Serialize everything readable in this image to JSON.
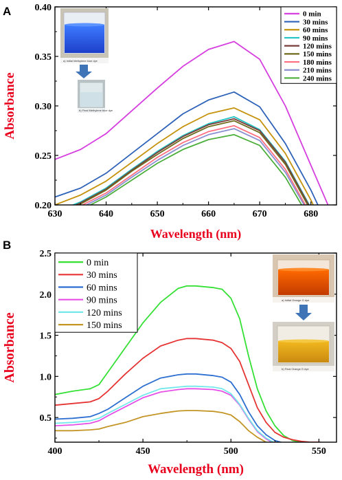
{
  "panels": {
    "a": {
      "letter": "A"
    },
    "b": {
      "letter": "B"
    }
  },
  "insets": {
    "a_top_caption": "a) Initial Methylene blue dye",
    "a_bottom_caption": "b) Final Methylene blue dye",
    "b_top_caption": "a) Initial Orange G dye",
    "b_bottom_caption": "b) Final Orange G dye"
  },
  "colors": {
    "axis_title": "#e8001c",
    "arrow": "#3f74b7"
  },
  "chart_data": [
    {
      "type": "line",
      "panel": "A",
      "xlabel": "Wavelength (nm)",
      "ylabel": "Absorbance",
      "xlim": [
        630,
        685
      ],
      "ylim": [
        0.2,
        0.4
      ],
      "xticks": [
        "630",
        "640",
        "650",
        "660",
        "670",
        "680"
      ],
      "yticks": [
        "0.20",
        "0.25",
        "0.30",
        "0.35",
        "0.40"
      ],
      "legend_position": "top-right",
      "x": [
        630,
        635,
        640,
        645,
        650,
        655,
        660,
        665,
        670,
        675,
        680,
        685
      ],
      "series": [
        {
          "name": "0 min",
          "color": "#d63ee0",
          "values": [
            0.246,
            0.256,
            0.272,
            0.295,
            0.318,
            0.34,
            0.357,
            0.365,
            0.347,
            0.3,
            0.24,
            0.18
          ]
        },
        {
          "name": "30 mins",
          "color": "#2e62b8",
          "values": [
            0.208,
            0.217,
            0.232,
            0.252,
            0.272,
            0.292,
            0.306,
            0.314,
            0.299,
            0.262,
            0.215,
            0.16
          ]
        },
        {
          "name": "60 mins",
          "color": "#c5920b",
          "values": [
            0.2,
            0.21,
            0.224,
            0.243,
            0.262,
            0.279,
            0.292,
            0.298,
            0.286,
            0.252,
            0.205,
            0.15
          ]
        },
        {
          "name": "90 mins",
          "color": "#20c4c4",
          "values": [
            0.193,
            0.203,
            0.217,
            0.236,
            0.254,
            0.27,
            0.282,
            0.289,
            0.276,
            0.244,
            0.197,
            0.14
          ]
        },
        {
          "name": "120 mins",
          "color": "#7a3b3b",
          "values": [
            0.191,
            0.202,
            0.216,
            0.235,
            0.253,
            0.269,
            0.281,
            0.287,
            0.275,
            0.243,
            0.196,
            0.14
          ]
        },
        {
          "name": "150 mins",
          "color": "#6f6a1c",
          "values": [
            0.19,
            0.201,
            0.215,
            0.234,
            0.251,
            0.267,
            0.279,
            0.285,
            0.273,
            0.241,
            0.194,
            0.14
          ]
        },
        {
          "name": "180 mins",
          "color": "#ff6f7f",
          "values": [
            0.188,
            0.199,
            0.212,
            0.23,
            0.248,
            0.263,
            0.274,
            0.28,
            0.268,
            0.236,
            0.19,
            0.14
          ]
        },
        {
          "name": "210 mins",
          "color": "#8a8fd1",
          "values": [
            0.186,
            0.197,
            0.21,
            0.228,
            0.245,
            0.26,
            0.271,
            0.277,
            0.265,
            0.233,
            0.188,
            0.14
          ]
        },
        {
          "name": "240 mins",
          "color": "#4cae3b",
          "values": [
            0.184,
            0.195,
            0.208,
            0.225,
            0.242,
            0.256,
            0.266,
            0.271,
            0.26,
            0.228,
            0.184,
            0.13
          ]
        }
      ]
    },
    {
      "type": "line",
      "panel": "B",
      "xlabel": "Wavelength (nm)",
      "ylabel": "Absorbance",
      "xlim": [
        400,
        560
      ],
      "ylim": [
        0.2,
        2.5
      ],
      "xticks": [
        "400",
        "450",
        "500",
        "550"
      ],
      "yticks": [
        "0.5",
        "1.0",
        "1.5",
        "2.0",
        "2.5"
      ],
      "legend_position": "top-left",
      "x": [
        400,
        410,
        420,
        425,
        430,
        440,
        450,
        460,
        470,
        475,
        480,
        490,
        495,
        500,
        505,
        510,
        515,
        520,
        525,
        530,
        535,
        540,
        545,
        550,
        555,
        560
      ],
      "series": [
        {
          "name": "0 min",
          "color": "#33e033",
          "values": [
            0.78,
            0.82,
            0.85,
            0.9,
            1.05,
            1.35,
            1.65,
            1.9,
            2.07,
            2.1,
            2.1,
            2.08,
            2.06,
            1.95,
            1.7,
            1.25,
            0.85,
            0.58,
            0.4,
            0.28,
            0.22,
            0.2,
            0.19,
            0.18,
            0.17,
            0.17
          ]
        },
        {
          "name": "30 mins",
          "color": "#e63333",
          "values": [
            0.65,
            0.67,
            0.69,
            0.73,
            0.82,
            1.03,
            1.22,
            1.37,
            1.44,
            1.46,
            1.46,
            1.44,
            1.41,
            1.34,
            1.18,
            0.9,
            0.62,
            0.44,
            0.32,
            0.26,
            0.23,
            0.21,
            0.2,
            0.2,
            0.19,
            0.19
          ]
        },
        {
          "name": "60 mins",
          "color": "#2c6fd1",
          "values": [
            0.48,
            0.49,
            0.51,
            0.55,
            0.6,
            0.74,
            0.88,
            0.98,
            1.02,
            1.03,
            1.03,
            1.01,
            0.99,
            0.93,
            0.78,
            0.57,
            0.4,
            0.29,
            0.22,
            0.19,
            0.17,
            0.16,
            0.15,
            0.15,
            0.15,
            0.15
          ]
        },
        {
          "name": "90 mins",
          "color": "#e64fe6",
          "values": [
            0.4,
            0.41,
            0.43,
            0.46,
            0.52,
            0.63,
            0.74,
            0.81,
            0.84,
            0.85,
            0.85,
            0.84,
            0.82,
            0.77,
            0.65,
            0.48,
            0.33,
            0.24,
            0.18,
            0.16,
            0.15,
            0.15,
            0.15,
            0.15,
            0.15,
            0.15
          ]
        },
        {
          "name": "120 mins",
          "color": "#72e8ea",
          "values": [
            0.43,
            0.44,
            0.46,
            0.49,
            0.55,
            0.66,
            0.77,
            0.85,
            0.87,
            0.88,
            0.88,
            0.87,
            0.85,
            0.79,
            0.66,
            0.49,
            0.34,
            0.25,
            0.19,
            0.17,
            0.16,
            0.16,
            0.16,
            0.16,
            0.16,
            0.16
          ]
        },
        {
          "name": "150 mins",
          "color": "#c39524",
          "values": [
            0.34,
            0.34,
            0.35,
            0.36,
            0.39,
            0.44,
            0.51,
            0.55,
            0.58,
            0.585,
            0.585,
            0.575,
            0.56,
            0.53,
            0.45,
            0.34,
            0.26,
            0.2,
            0.17,
            0.15,
            0.15,
            0.15,
            0.15,
            0.15,
            0.15,
            0.15
          ]
        }
      ]
    }
  ]
}
